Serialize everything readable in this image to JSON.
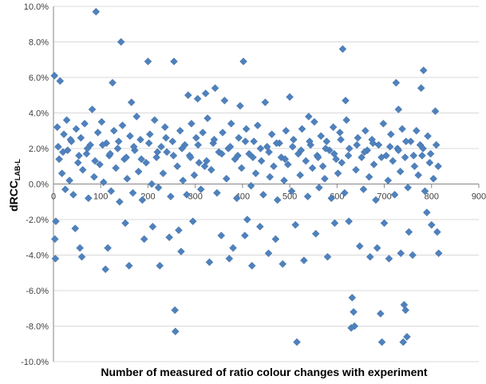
{
  "chart_data": {
    "type": "scatter",
    "title": "",
    "xlabel": "Number of measured of ratio colour changes with experiment",
    "ylabel_main": "dRCC",
    "ylabel_sub": "LAB-L",
    "xlim": [
      0,
      900
    ],
    "ylim": [
      -10,
      10
    ],
    "x_ticks": [
      0,
      100,
      200,
      300,
      400,
      500,
      600,
      700,
      800,
      900
    ],
    "x_tick_labels": [
      "0",
      "100",
      "200",
      "300",
      "400",
      "500",
      "600",
      "700",
      "800",
      "900"
    ],
    "y_ticks": [
      10,
      8,
      6,
      4,
      2,
      0,
      -2,
      -4,
      -6,
      -8,
      -10
    ],
    "y_tick_labels": [
      "10.0%",
      "8.0%",
      "6.0%",
      "4.0%",
      "2.0%",
      "0.0%",
      "-2.0%",
      "-4.0%",
      "-6.0%",
      "-8.0%",
      "-10.0%"
    ],
    "marker_color": "#4F81BD",
    "series": [
      {
        "points": [
          [
            2,
            6.1
          ],
          [
            3,
            -3.1
          ],
          [
            4,
            -4.2
          ],
          [
            5,
            -2.1
          ],
          [
            14,
            5.8
          ],
          [
            46,
            -2.5
          ],
          [
            56,
            -3.6
          ],
          [
            60,
            -4.1
          ],
          [
            90,
            9.7
          ],
          [
            110,
            -4.8
          ],
          [
            115,
            -3.6
          ],
          [
            125,
            5.7
          ],
          [
            143,
            8.0
          ],
          [
            152,
            -2.2
          ],
          [
            160,
            -4.6
          ],
          [
            165,
            4.6
          ],
          [
            192,
            -3.1
          ],
          [
            200,
            6.9
          ],
          [
            210,
            -2.4
          ],
          [
            225,
            -4.6
          ],
          [
            245,
            -3.0
          ],
          [
            255,
            6.9
          ],
          [
            257,
            -7.1
          ],
          [
            258,
            -8.3
          ],
          [
            265,
            -2.6
          ],
          [
            270,
            -3.8
          ],
          [
            285,
            5.0
          ],
          [
            295,
            -2.1
          ],
          [
            305,
            4.8
          ],
          [
            322,
            5.1
          ],
          [
            330,
            -4.4
          ],
          [
            342,
            5.4
          ],
          [
            355,
            -2.9
          ],
          [
            362,
            4.7
          ],
          [
            372,
            -4.2
          ],
          [
            380,
            -3.6
          ],
          [
            395,
            4.4
          ],
          [
            402,
            6.9
          ],
          [
            405,
            -2.9
          ],
          [
            410,
            -2.0
          ],
          [
            420,
            -4.6
          ],
          [
            437,
            -2.4
          ],
          [
            448,
            4.6
          ],
          [
            455,
            -3.9
          ],
          [
            470,
            -3.1
          ],
          [
            485,
            -4.5
          ],
          [
            500,
            4.9
          ],
          [
            512,
            -2.3
          ],
          [
            515,
            -8.9
          ],
          [
            530,
            -4.3
          ],
          [
            540,
            3.8
          ],
          [
            555,
            -2.8
          ],
          [
            580,
            -4.1
          ],
          [
            595,
            -2.2
          ],
          [
            612,
            7.6
          ],
          [
            618,
            4.7
          ],
          [
            625,
            -2.1
          ],
          [
            630,
            -8.1
          ],
          [
            632,
            -6.4
          ],
          [
            635,
            -7.2
          ],
          [
            637,
            -8.0
          ],
          [
            648,
            -3.5
          ],
          [
            670,
            -4.1
          ],
          [
            685,
            -3.6
          ],
          [
            692,
            -7.3
          ],
          [
            695,
            -8.9
          ],
          [
            700,
            -2.2
          ],
          [
            710,
            -4.2
          ],
          [
            725,
            5.7
          ],
          [
            730,
            4.2
          ],
          [
            735,
            -3.9
          ],
          [
            740,
            -8.9
          ],
          [
            742,
            -6.8
          ],
          [
            745,
            -7.1
          ],
          [
            748,
            -8.6
          ],
          [
            752,
            -2.7
          ],
          [
            760,
            -4.0
          ],
          [
            778,
            5.4
          ],
          [
            783,
            6.4
          ],
          [
            790,
            -1.6
          ],
          [
            800,
            -2.3
          ],
          [
            808,
            4.1
          ],
          [
            812,
            -2.7
          ],
          [
            815,
            -3.9
          ],
          [
            8,
            3.2
          ],
          [
            10,
            2.1
          ],
          [
            12,
            1.4
          ],
          [
            18,
            0.6
          ],
          [
            22,
            2.8
          ],
          [
            25,
            -0.3
          ],
          [
            28,
            3.6
          ],
          [
            30,
            1.9
          ],
          [
            34,
            0.2
          ],
          [
            38,
            2.4
          ],
          [
            42,
            -0.6
          ],
          [
            48,
            3.1
          ],
          [
            52,
            1.2
          ],
          [
            58,
            2.6
          ],
          [
            62,
            0.8
          ],
          [
            66,
            3.4
          ],
          [
            70,
            1.7
          ],
          [
            74,
            -0.8
          ],
          [
            78,
            2.2
          ],
          [
            82,
            4.2
          ],
          [
            86,
            0.4
          ],
          [
            94,
            2.9
          ],
          [
            98,
            1.1
          ],
          [
            102,
            3.5
          ],
          [
            106,
            0.1
          ],
          [
            112,
            2.3
          ],
          [
            118,
            1.6
          ],
          [
            122,
            -0.4
          ],
          [
            128,
            3.0
          ],
          [
            132,
            0.9
          ],
          [
            136,
            2.0
          ],
          [
            140,
            -1.0
          ],
          [
            146,
            3.3
          ],
          [
            150,
            1.4
          ],
          [
            156,
            0.3
          ],
          [
            162,
            2.7
          ],
          [
            168,
            -0.5
          ],
          [
            172,
            1.9
          ],
          [
            176,
            3.8
          ],
          [
            180,
            0.7
          ],
          [
            184,
            2.5
          ],
          [
            188,
            -0.9
          ],
          [
            196,
            1.2
          ],
          [
            204,
            2.8
          ],
          [
            208,
            0.0
          ],
          [
            214,
            3.6
          ],
          [
            218,
            1.5
          ],
          [
            222,
            -0.2
          ],
          [
            228,
            2.1
          ],
          [
            232,
            0.6
          ],
          [
            236,
            3.2
          ],
          [
            240,
            1.8
          ],
          [
            248,
            -0.7
          ],
          [
            252,
            2.4
          ],
          [
            262,
            1.0
          ],
          [
            268,
            3.0
          ],
          [
            274,
            0.2
          ],
          [
            278,
            2.2
          ],
          [
            282,
            -0.6
          ],
          [
            288,
            1.6
          ],
          [
            292,
            3.4
          ],
          [
            298,
            0.5
          ],
          [
            302,
            2.6
          ],
          [
            308,
            1.2
          ],
          [
            312,
            -0.3
          ],
          [
            316,
            2.9
          ],
          [
            320,
            1.0
          ],
          [
            326,
            3.7
          ],
          [
            334,
            0.8
          ],
          [
            338,
            2.3
          ],
          [
            346,
            -0.5
          ],
          [
            350,
            1.8
          ],
          [
            358,
            2.9
          ],
          [
            366,
            0.3
          ],
          [
            370,
            2.0
          ],
          [
            376,
            3.4
          ],
          [
            384,
            1.4
          ],
          [
            388,
            -0.8
          ],
          [
            392,
            2.6
          ],
          [
            398,
            0.9
          ],
          [
            408,
            3.1
          ],
          [
            414,
            1.7
          ],
          [
            418,
            -0.1
          ],
          [
            424,
            2.4
          ],
          [
            428,
            0.6
          ],
          [
            432,
            3.3
          ],
          [
            440,
            1.3
          ],
          [
            444,
            -0.6
          ],
          [
            452,
            2.1
          ],
          [
            458,
            0.4
          ],
          [
            462,
            2.8
          ],
          [
            466,
            1.0
          ],
          [
            474,
            -0.9
          ],
          [
            478,
            2.3
          ],
          [
            482,
            1.5
          ],
          [
            488,
            0.2
          ],
          [
            492,
            3.0
          ],
          [
            496,
            1.1
          ],
          [
            504,
            -0.4
          ],
          [
            508,
            2.5
          ],
          [
            518,
            1.7
          ],
          [
            522,
            0.5
          ],
          [
            526,
            3.1
          ],
          [
            534,
            1.3
          ],
          [
            538,
            -0.7
          ],
          [
            544,
            2.2
          ],
          [
            548,
            0.9
          ],
          [
            552,
            3.5
          ],
          [
            558,
            1.6
          ],
          [
            562,
            -0.2
          ],
          [
            566,
            2.7
          ],
          [
            570,
            1.0
          ],
          [
            574,
            0.3
          ],
          [
            578,
            2.4
          ],
          [
            584,
            1.9
          ],
          [
            588,
            -0.8
          ],
          [
            592,
            3.2
          ],
          [
            598,
            1.4
          ],
          [
            602,
            0.6
          ],
          [
            606,
            2.9
          ],
          [
            610,
            1.2
          ],
          [
            616,
            -0.5
          ],
          [
            620,
            3.6
          ],
          [
            626,
            2.0
          ],
          [
            640,
            0.8
          ],
          [
            644,
            2.6
          ],
          [
            652,
            1.5
          ],
          [
            656,
            -0.3
          ],
          [
            660,
            3.0
          ],
          [
            664,
            1.9
          ],
          [
            668,
            0.4
          ],
          [
            674,
            2.5
          ],
          [
            678,
            1.1
          ],
          [
            682,
            -0.9
          ],
          [
            688,
            2.2
          ],
          [
            698,
            3.4
          ],
          [
            704,
            1.6
          ],
          [
            708,
            0.2
          ],
          [
            714,
            2.8
          ],
          [
            718,
            1.3
          ],
          [
            722,
            -0.6
          ],
          [
            728,
            2.0
          ],
          [
            734,
            0.7
          ],
          [
            738,
            3.1
          ],
          [
            744,
            1.5
          ],
          [
            750,
            -0.2
          ],
          [
            756,
            2.4
          ],
          [
            764,
            1.0
          ],
          [
            768,
            3.0
          ],
          [
            772,
            0.5
          ],
          [
            776,
            2.2
          ],
          [
            780,
            1.6
          ],
          [
            786,
            -0.4
          ],
          [
            792,
            2.7
          ],
          [
            796,
            1.2
          ],
          [
            804,
            0.3
          ],
          [
            810,
            2.2
          ],
          [
            814,
            1.0
          ],
          [
            20,
            1.8
          ],
          [
            36,
            2.5
          ],
          [
            54,
            1.6
          ],
          [
            72,
            2.0
          ],
          [
            88,
            1.3
          ],
          [
            104,
            2.2
          ],
          [
            120,
            1.7
          ],
          [
            138,
            2.4
          ],
          [
            154,
            1.5
          ],
          [
            170,
            2.1
          ],
          [
            186,
            1.4
          ],
          [
            202,
            2.3
          ],
          [
            220,
            1.8
          ],
          [
            238,
            2.6
          ],
          [
            254,
            1.6
          ],
          [
            272,
            2.0
          ],
          [
            290,
            1.5
          ],
          [
            306,
            2.2
          ],
          [
            324,
            1.3
          ],
          [
            340,
            2.5
          ],
          [
            356,
            1.7
          ],
          [
            374,
            2.1
          ],
          [
            390,
            1.6
          ],
          [
            406,
            2.4
          ],
          [
            422,
            1.5
          ],
          [
            438,
            2.0
          ],
          [
            456,
            1.8
          ],
          [
            472,
            2.3
          ],
          [
            490,
            1.4
          ],
          [
            506,
            2.1
          ],
          [
            524,
            1.9
          ],
          [
            542,
            2.4
          ],
          [
            560,
            1.5
          ],
          [
            576,
            2.0
          ],
          [
            594,
            1.7
          ],
          [
            608,
            2.5
          ],
          [
            624,
            1.6
          ],
          [
            642,
            2.2
          ],
          [
            658,
            1.8
          ],
          [
            676,
            2.3
          ],
          [
            694,
            1.5
          ],
          [
            712,
            2.1
          ],
          [
            730,
            1.9
          ],
          [
            746,
            2.4
          ],
          [
            762,
            1.6
          ],
          [
            782,
            2.0
          ],
          [
            798,
            1.7
          ]
        ]
      }
    ]
  }
}
